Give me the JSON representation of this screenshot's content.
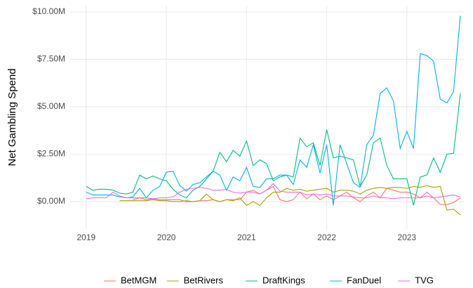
{
  "chart_data": {
    "type": "line",
    "y_label": "Net Gambling Spend",
    "x": [
      2019,
      2019.083,
      2019.167,
      2019.25,
      2019.333,
      2019.417,
      2019.5,
      2019.583,
      2019.667,
      2019.75,
      2019.833,
      2019.917,
      2020,
      2020.083,
      2020.167,
      2020.25,
      2020.333,
      2020.417,
      2020.5,
      2020.583,
      2020.667,
      2020.75,
      2020.833,
      2020.917,
      2021,
      2021.083,
      2021.167,
      2021.25,
      2021.333,
      2021.417,
      2021.5,
      2021.583,
      2021.667,
      2021.75,
      2021.833,
      2021.917,
      2022,
      2022.083,
      2022.167,
      2022.25,
      2022.333,
      2022.417,
      2022.5,
      2022.583,
      2022.667,
      2022.75,
      2022.833,
      2022.917,
      2023,
      2023.083,
      2023.167,
      2023.25,
      2023.333,
      2023.417,
      2023.5,
      2023.583,
      2023.667
    ],
    "series": [
      {
        "name": "BetMGM",
        "color": "#F8766D",
        "values": [
          null,
          null,
          null,
          null,
          null,
          null,
          null,
          0.1,
          0.2,
          0.1,
          0.15,
          0.1,
          0.1,
          0.1,
          0.1,
          0.0,
          0.0,
          0.05,
          0.05,
          0.1,
          0.0,
          0.1,
          0.1,
          0.1,
          0.5,
          0.6,
          0.4,
          0.6,
          0.8,
          0.1,
          0.0,
          0.1,
          0.5,
          0.15,
          0.4,
          0.1,
          0.3,
          0.1,
          0.3,
          0.5,
          0.2,
          0.0,
          0.3,
          0.5,
          0.2,
          0.7,
          0.6,
          0.5,
          0.5,
          0.4,
          0.2,
          0.3,
          0.2,
          -0.15,
          -0.15,
          -0.05,
          0.2
        ]
      },
      {
        "name": "BetRivers",
        "color": "#A3A500",
        "values": [
          null,
          null,
          null,
          null,
          null,
          0.05,
          0.05,
          0.05,
          0.05,
          0.05,
          0.1,
          0.05,
          0.05,
          0.0,
          0.0,
          0.05,
          0.0,
          0.05,
          0.4,
          0.1,
          0.0,
          0.1,
          0.05,
          0.2,
          -0.2,
          0.0,
          -0.2,
          0.2,
          0.5,
          0.5,
          0.7,
          0.6,
          0.65,
          0.55,
          0.6,
          0.65,
          0.7,
          0.5,
          0.6,
          0.6,
          0.55,
          0.4,
          0.6,
          0.7,
          0.75,
          0.7,
          0.75,
          0.75,
          0.7,
          0.8,
          0.75,
          0.85,
          0.75,
          0.8,
          -0.45,
          -0.4,
          -0.7
        ]
      },
      {
        "name": "DraftKings",
        "color": "#00BF7D",
        "values": [
          0.8,
          0.6,
          0.65,
          0.65,
          0.6,
          0.45,
          0.4,
          0.5,
          1.4,
          1.2,
          1.35,
          1.2,
          1.1,
          0.65,
          0.35,
          0.2,
          0.6,
          0.8,
          1.2,
          1.6,
          2.6,
          2.1,
          2.7,
          2.4,
          3.2,
          1.9,
          2.2,
          2.0,
          1.1,
          1.3,
          1.4,
          1.3,
          3.35,
          2.9,
          3.1,
          1.9,
          3.8,
          2.3,
          2.4,
          2.3,
          2.2,
          0.8,
          1.4,
          3.1,
          3.35,
          1.9,
          1.2,
          1.2,
          1.2,
          -0.2,
          1.3,
          1.4,
          2.3,
          1.55,
          2.5,
          2.55,
          5.7
        ]
      },
      {
        "name": "FanDuel",
        "color": "#00B0F6",
        "values": [
          0.5,
          0.35,
          0.35,
          0.35,
          0.35,
          0.25,
          0.2,
          0.25,
          0.7,
          0.2,
          0.6,
          0.8,
          1.55,
          1.6,
          0.85,
          0.55,
          0.9,
          1.0,
          1.3,
          1.6,
          1.4,
          0.6,
          1.3,
          1.1,
          1.8,
          0.8,
          0.75,
          1.2,
          1.2,
          1.4,
          1.4,
          0.9,
          2.2,
          1.8,
          3.0,
          1.5,
          3.0,
          -0.2,
          3.0,
          2.0,
          1.0,
          0.75,
          3.0,
          3.5,
          5.7,
          6.0,
          5.3,
          2.8,
          3.7,
          2.8,
          7.8,
          7.7,
          7.4,
          5.4,
          5.2,
          5.8,
          9.8
        ]
      },
      {
        "name": "TVG",
        "color": "#E76BF3",
        "values": [
          0.15,
          0.2,
          0.2,
          0.2,
          0.5,
          0.3,
          0.2,
          0.2,
          0.2,
          0.2,
          0.15,
          0.2,
          0.2,
          0.25,
          0.5,
          0.65,
          0.7,
          0.75,
          0.7,
          0.6,
          0.6,
          0.65,
          0.5,
          0.45,
          0.5,
          0.5,
          0.4,
          0.6,
          0.95,
          0.55,
          0.5,
          0.5,
          0.5,
          0.35,
          0.4,
          0.35,
          0.4,
          0.3,
          0.3,
          0.3,
          0.25,
          0.2,
          0.2,
          0.3,
          0.2,
          0.2,
          0.15,
          0.2,
          0.2,
          0.2,
          0.2,
          0.5,
          0.2,
          0.25,
          0.3,
          0.35,
          0.25
        ]
      }
    ],
    "xlim": [
      2018.8,
      2023.72
    ],
    "xticks": [
      2019,
      2020,
      2021,
      2022,
      2023
    ],
    "ylim": [
      -1.48,
      10.33
    ],
    "yticks": [
      {
        "value": 0,
        "label": "$0.00M"
      },
      {
        "value": 2.5,
        "label": "$2.50M"
      },
      {
        "value": 5,
        "label": "$5.00M"
      },
      {
        "value": 7.5,
        "label": "$7.50M"
      },
      {
        "value": 10,
        "label": "$10.00M"
      }
    ],
    "grid": true,
    "legend": "bottom"
  }
}
